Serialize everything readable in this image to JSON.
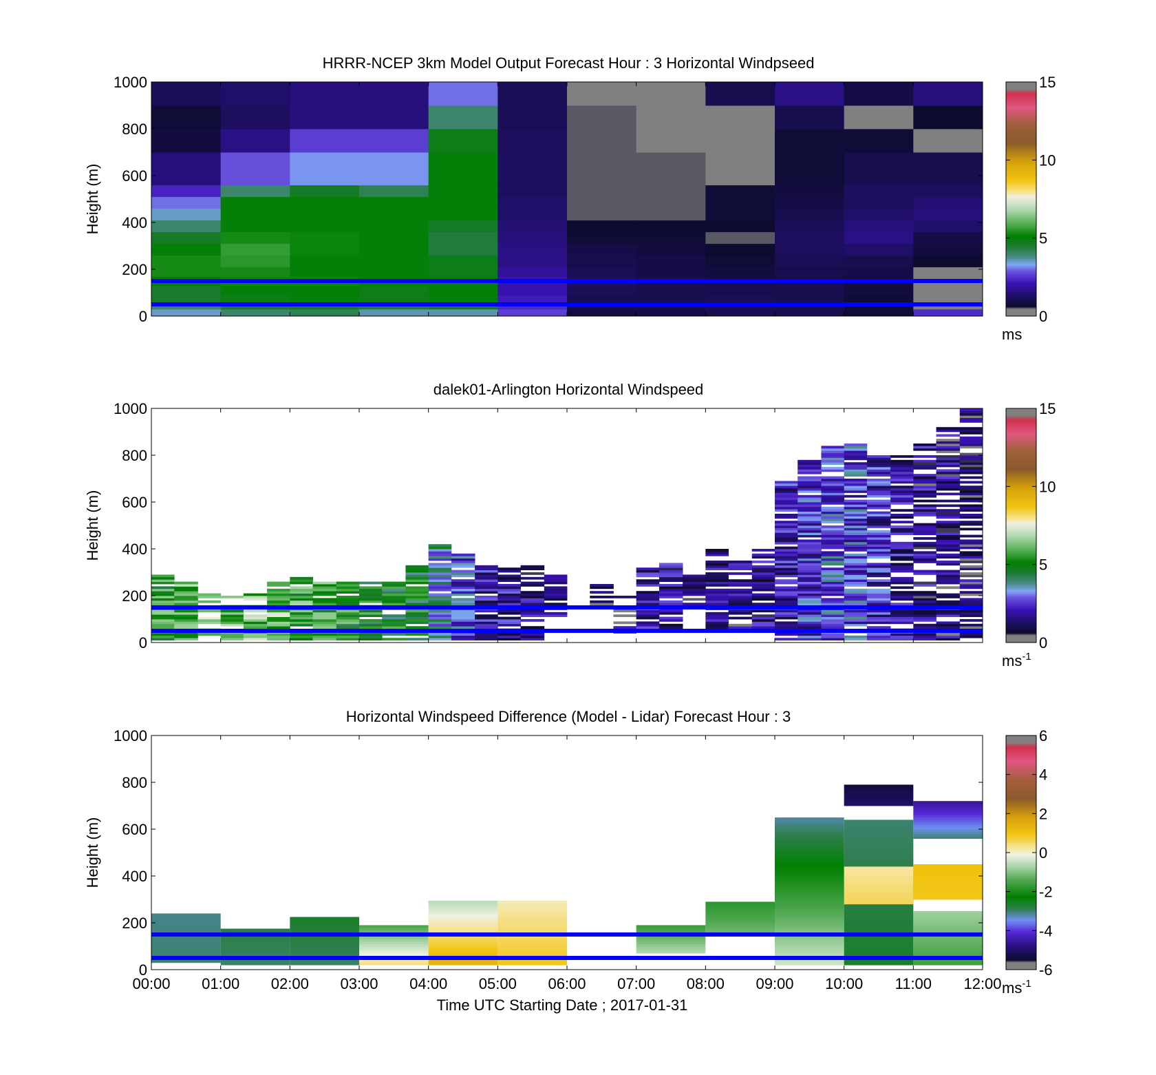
{
  "figure": {
    "xlabel": "Time UTC  Starting Date ; 2017-01-31"
  },
  "chart_data": [
    {
      "type": "heatmap",
      "title": "HRRR-NCEP 3km Model Output   Forecast Hour : 3 Horizontal Windpseed",
      "ylabel": "Height (m)",
      "xlim": [
        0,
        12
      ],
      "ylim": [
        0,
        1000
      ],
      "yticks": [
        "0",
        "200",
        "400",
        "600",
        "800",
        "1000"
      ],
      "x_tick_labels_shown": false,
      "colorbar": {
        "min": 0,
        "max": 15,
        "ticks": [
          "0",
          "5",
          "10",
          "15"
        ],
        "unit": "ms",
        "unit_sup": "",
        "palette": "speed"
      },
      "reference_lines_m": [
        150,
        50
      ],
      "reference_line_color": "#0000ff",
      "layers_m": [
        0,
        30,
        60,
        90,
        130,
        170,
        210,
        260,
        310,
        360,
        410,
        460,
        510,
        560,
        700,
        800,
        900,
        1000
      ],
      "columns": [
        {
          "x0": 0,
          "x1": 1,
          "values": [
            3.5,
            4.0,
            4.5,
            4.5,
            5.0,
            5.3,
            5.3,
            5.0,
            4.6,
            4.0,
            3.5,
            3.0,
            2.3,
            1.5,
            0.8,
            0.7,
            1.1
          ]
        },
        {
          "x0": 1,
          "x1": 2,
          "values": [
            4.0,
            4.5,
            4.8,
            5.0,
            5.2,
            5.3,
            5.5,
            5.6,
            5.3,
            5.0,
            5.0,
            5.0,
            4.0,
            2.8,
            1.6,
            1.2,
            1.3
          ]
        },
        {
          "x0": 2,
          "x1": 3,
          "values": [
            4.2,
            4.6,
            5.0,
            5.0,
            5.2,
            5.0,
            5.0,
            5.2,
            5.2,
            5.0,
            5.0,
            5.0,
            4.6,
            3.2,
            2.6,
            1.5,
            1.5
          ]
        },
        {
          "x0": 3,
          "x1": 4,
          "values": [
            3.6,
            4.4,
            4.8,
            4.8,
            5.0,
            5.0,
            5.0,
            5.0,
            5.0,
            5.0,
            5.0,
            5.0,
            4.2,
            3.2,
            2.6,
            1.5,
            1.5
          ]
        },
        {
          "x0": 4,
          "x1": 5,
          "values": [
            3.6,
            4.6,
            5.0,
            5.0,
            5.0,
            4.8,
            4.8,
            4.4,
            4.4,
            4.6,
            5.0,
            5.0,
            5.0,
            5.0,
            4.8,
            4.0,
            3.0
          ]
        },
        {
          "x0": 5,
          "x1": 6,
          "values": [
            2.6,
            2.4,
            2.2,
            2.0,
            2.0,
            1.8,
            1.6,
            1.6,
            1.5,
            1.4,
            1.3,
            1.3,
            1.2,
            1.2,
            1.2,
            1.1,
            1.1
          ]
        },
        {
          "x0": 6,
          "x1": 7,
          "values": [
            0.8,
            1.0,
            1.0,
            1.1,
            1.2,
            1.1,
            1.0,
            0.9,
            0.7,
            0.6,
            0.5,
            0.5,
            0.5,
            0.5,
            0.5,
            0.5,
            0.2
          ]
        },
        {
          "x0": 7,
          "x1": 8,
          "values": [
            0.9,
            1.0,
            1.0,
            1.0,
            1.0,
            0.9,
            0.9,
            0.8,
            0.7,
            0.6,
            0.5,
            0.5,
            0.5,
            0.5,
            0.2,
            0.2,
            0.4
          ]
        },
        {
          "x0": 8,
          "x1": 9,
          "values": [
            1.0,
            1.1,
            1.1,
            1.0,
            0.9,
            0.8,
            0.7,
            0.6,
            0.5,
            0.6,
            0.7,
            0.7,
            0.7,
            0.2,
            0.2,
            0.4,
            1.0
          ]
        },
        {
          "x0": 9,
          "x1": 10,
          "values": [
            1.0,
            1.0,
            1.0,
            1.0,
            1.0,
            1.0,
            1.1,
            1.2,
            1.2,
            1.1,
            1.0,
            0.9,
            0.8,
            0.7,
            0.7,
            1.0,
            1.6
          ]
        },
        {
          "x0": 10,
          "x1": 11,
          "values": [
            0.7,
            0.7,
            0.7,
            0.8,
            0.8,
            0.9,
            1.0,
            1.3,
            1.6,
            1.5,
            1.3,
            1.2,
            1.2,
            1.0,
            0.7,
            0.2,
            0.9
          ]
        },
        {
          "x0": 11,
          "x1": 12,
          "values": [
            2.4,
            0.2,
            0.2,
            0.2,
            0.2,
            0.2,
            0.6,
            0.8,
            0.9,
            1.3,
            1.5,
            1.4,
            1.2,
            1.0,
            0.2,
            0.6,
            1.5
          ]
        }
      ]
    },
    {
      "type": "heatmap",
      "title": "dalek01-Arlington  Horizontal Windspeed",
      "ylabel": "Height (m)",
      "xlim": [
        0,
        12
      ],
      "ylim": [
        0,
        1000
      ],
      "yticks": [
        "0",
        "200",
        "400",
        "600",
        "800",
        "1000"
      ],
      "x_tick_labels_shown": false,
      "colorbar": {
        "min": 0,
        "max": 15,
        "ticks": [
          "0",
          "5",
          "10",
          "15"
        ],
        "unit": "ms",
        "unit_sup": "-1",
        "palette": "speed"
      },
      "reference_lines_m": [
        150,
        50
      ],
      "reference_line_color": "#0000ff",
      "columns": [
        {
          "x0": 0.0,
          "x1": 0.33,
          "top": 290,
          "bottom": 10,
          "mean": 5.4,
          "fill": 0.92
        },
        {
          "x0": 0.33,
          "x1": 0.67,
          "top": 260,
          "bottom": 10,
          "mean": 6.0,
          "fill": 0.85
        },
        {
          "x0": 0.67,
          "x1": 1.0,
          "top": 220,
          "bottom": 10,
          "mean": 6.6,
          "fill": 0.8
        },
        {
          "x0": 1.0,
          "x1": 1.33,
          "top": 210,
          "bottom": 10,
          "mean": 5.8,
          "fill": 0.8
        },
        {
          "x0": 1.33,
          "x1": 1.67,
          "top": 210,
          "bottom": 10,
          "mean": 6.2,
          "fill": 0.8
        },
        {
          "x0": 1.67,
          "x1": 2.0,
          "top": 260,
          "bottom": 10,
          "mean": 6.3,
          "fill": 0.85
        },
        {
          "x0": 2.0,
          "x1": 2.33,
          "top": 290,
          "bottom": 10,
          "mean": 5.6,
          "fill": 0.9
        },
        {
          "x0": 2.33,
          "x1": 2.67,
          "top": 260,
          "bottom": 10,
          "mean": 5.7,
          "fill": 0.9
        },
        {
          "x0": 2.67,
          "x1": 3.0,
          "top": 260,
          "bottom": 10,
          "mean": 5.2,
          "fill": 0.9
        },
        {
          "x0": 3.0,
          "x1": 3.33,
          "top": 260,
          "bottom": 10,
          "mean": 5.0,
          "fill": 0.9
        },
        {
          "x0": 3.33,
          "x1": 3.67,
          "top": 260,
          "bottom": 10,
          "mean": 4.9,
          "fill": 0.9
        },
        {
          "x0": 3.67,
          "x1": 4.0,
          "top": 330,
          "bottom": 10,
          "mean": 4.8,
          "fill": 0.9
        },
        {
          "x0": 4.0,
          "x1": 4.33,
          "top": 430,
          "bottom": 10,
          "mean": 3.6,
          "fill": 0.9
        },
        {
          "x0": 4.33,
          "x1": 4.67,
          "top": 380,
          "bottom": 10,
          "mean": 2.6,
          "fill": 0.85
        },
        {
          "x0": 4.67,
          "x1": 5.0,
          "top": 330,
          "bottom": 10,
          "mean": 2.0,
          "fill": 0.85
        },
        {
          "x0": 5.0,
          "x1": 5.33,
          "top": 320,
          "bottom": 10,
          "mean": 1.8,
          "fill": 0.85
        },
        {
          "x0": 5.33,
          "x1": 5.67,
          "top": 330,
          "bottom": 10,
          "mean": 1.7,
          "fill": 0.85
        },
        {
          "x0": 5.67,
          "x1": 6.0,
          "top": 300,
          "bottom": 110,
          "mean": 1.6,
          "fill": 0.8
        },
        {
          "x0": 6.33,
          "x1": 6.67,
          "top": 260,
          "bottom": 150,
          "mean": 1.2,
          "fill": 0.7
        },
        {
          "x0": 6.67,
          "x1": 7.0,
          "top": 290,
          "bottom": 20,
          "mean": 1.0,
          "fill": 0.25
        },
        {
          "x0": 7.0,
          "x1": 7.33,
          "top": 320,
          "bottom": 60,
          "mean": 1.8,
          "fill": 0.85
        },
        {
          "x0": 7.33,
          "x1": 7.67,
          "top": 340,
          "bottom": 60,
          "mean": 1.7,
          "fill": 0.85
        },
        {
          "x0": 7.67,
          "x1": 8.0,
          "top": 300,
          "bottom": 160,
          "mean": 1.5,
          "fill": 0.8
        },
        {
          "x0": 8.0,
          "x1": 8.33,
          "top": 400,
          "bottom": 60,
          "mean": 1.4,
          "fill": 0.85
        },
        {
          "x0": 8.33,
          "x1": 8.67,
          "top": 360,
          "bottom": 60,
          "mean": 1.4,
          "fill": 0.85
        },
        {
          "x0": 8.67,
          "x1": 9.0,
          "top": 400,
          "bottom": 60,
          "mean": 1.6,
          "fill": 0.85
        },
        {
          "x0": 9.0,
          "x1": 9.33,
          "top": 700,
          "bottom": 10,
          "mean": 2.0,
          "fill": 0.9
        },
        {
          "x0": 9.33,
          "x1": 9.67,
          "top": 780,
          "bottom": 10,
          "mean": 2.4,
          "fill": 0.92
        },
        {
          "x0": 9.67,
          "x1": 10.0,
          "top": 840,
          "bottom": 10,
          "mean": 2.8,
          "fill": 0.92
        },
        {
          "x0": 10.0,
          "x1": 10.33,
          "top": 860,
          "bottom": 10,
          "mean": 2.6,
          "fill": 0.9
        },
        {
          "x0": 10.33,
          "x1": 10.67,
          "top": 800,
          "bottom": 10,
          "mean": 2.2,
          "fill": 0.85
        },
        {
          "x0": 10.67,
          "x1": 11.0,
          "top": 800,
          "bottom": 10,
          "mean": 1.8,
          "fill": 0.7
        },
        {
          "x0": 11.0,
          "x1": 11.33,
          "top": 850,
          "bottom": 10,
          "mean": 1.6,
          "fill": 0.75
        },
        {
          "x0": 11.33,
          "x1": 11.67,
          "top": 920,
          "bottom": 10,
          "mean": 1.5,
          "fill": 0.7
        },
        {
          "x0": 11.67,
          "x1": 12.0,
          "top": 1000,
          "bottom": 10,
          "mean": 1.1,
          "fill": 0.75
        }
      ]
    },
    {
      "type": "heatmap",
      "title": "Horizontal Windspeed Difference (Model - Lidar) Forecast Hour : 3",
      "ylabel": "Height (m)",
      "xlim": [
        0,
        12
      ],
      "ylim": [
        0,
        1000
      ],
      "xticks": [
        "00:00",
        "01:00",
        "02:00",
        "03:00",
        "04:00",
        "05:00",
        "06:00",
        "07:00",
        "08:00",
        "09:00",
        "10:00",
        "11:00",
        "12:00"
      ],
      "yticks": [
        "0",
        "200",
        "400",
        "600",
        "800",
        "1000"
      ],
      "x_tick_labels_shown": true,
      "colorbar": {
        "min": -6,
        "max": 6,
        "ticks": [
          "-6",
          "-4",
          "-2",
          "0",
          "2",
          "4",
          "6"
        ],
        "unit": "ms",
        "unit_sup": "-1",
        "palette": "diff"
      },
      "reference_lines_m": [
        150,
        50
      ],
      "reference_line_color": "#0000ff",
      "segments": [
        {
          "x0": 0,
          "x1": 1,
          "y0": 30,
          "y1": 240,
          "v0": -3.0,
          "v1": -3.1
        },
        {
          "x0": 1,
          "x1": 2,
          "y0": 20,
          "y1": 175,
          "v0": -3.0,
          "v1": -2.8
        },
        {
          "x0": 2,
          "x1": 3,
          "y0": 20,
          "y1": 225,
          "v0": -3.0,
          "v1": -2.6
        },
        {
          "x0": 3,
          "x1": 4,
          "y0": 20,
          "y1": 190,
          "v0": 0.4,
          "v1": -1.5
        },
        {
          "x0": 4,
          "x1": 5,
          "y0": 20,
          "y1": 295,
          "v0": 1.4,
          "v1": -0.6
        },
        {
          "x0": 5,
          "x1": 6,
          "y0": 20,
          "y1": 295,
          "v0": 0.9,
          "v1": 0.1
        },
        {
          "x0": 7,
          "x1": 8,
          "y0": 70,
          "y1": 190,
          "v0": -0.6,
          "v1": -1.7
        },
        {
          "x0": 8,
          "x1": 9,
          "y0": 160,
          "y1": 290,
          "v0": -1.2,
          "v1": -1.8
        },
        {
          "x0": 9,
          "x1": 10,
          "y0": 20,
          "y1": 650,
          "v0": -0.4,
          "v1": -3.2
        },
        {
          "x0": 10,
          "x1": 11,
          "y0": 20,
          "y1": 640,
          "v0": -2.6,
          "v1": -3.0
        },
        {
          "x0": 10,
          "x1": 11,
          "y0": 280,
          "y1": 440,
          "v0": 0.6,
          "v1": 0.2
        },
        {
          "x0": 10,
          "x1": 11,
          "y0": 700,
          "y1": 790,
          "v0": -5.0,
          "v1": -5.4
        },
        {
          "x0": 11,
          "x1": 12,
          "y0": 20,
          "y1": 250,
          "v0": -1.6,
          "v1": -0.8
        },
        {
          "x0": 11,
          "x1": 12,
          "y0": 300,
          "y1": 450,
          "v0": 0.9,
          "v1": 1.0
        },
        {
          "x0": 11,
          "x1": 12,
          "y0": 560,
          "y1": 720,
          "v0": -3.0,
          "v1": -4.6
        }
      ]
    }
  ]
}
